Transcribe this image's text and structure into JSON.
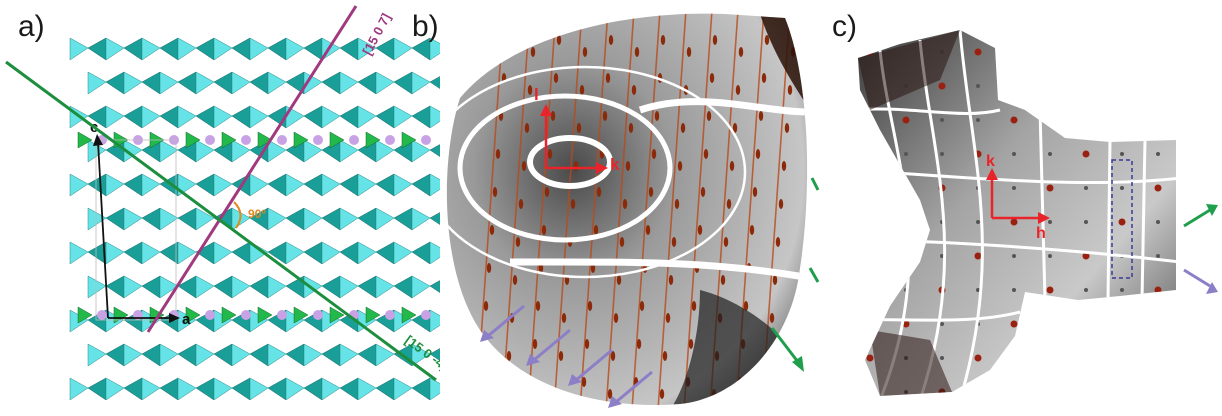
{
  "figure": {
    "panels": [
      {
        "label": "a)",
        "annotations": {
          "axis_c": "c",
          "axis_a": "a",
          "direction_1": "[15 0 7]",
          "direction_2": "[15 0 -4]",
          "angle": "90°"
        }
      },
      {
        "label": "b)",
        "annotations": {
          "axis_l": "l",
          "axis_k": "k"
        }
      },
      {
        "label": "c)",
        "annotations": {
          "axis_k": "k",
          "axis_h": "h"
        }
      }
    ],
    "colors": {
      "tetra_teal": "#1a9e98",
      "tetra_cyan": "#66e3e6",
      "green_tri": "#22b84a",
      "lilac_circle": "#c9a2e6",
      "purple_line": "#a0397f",
      "green_line": "#1c8e3e",
      "axis_red": "#e8242a",
      "arrow_purple": "#8c7fc7",
      "arrow_green": "#1f9e4c",
      "angle_orange": "#e08a1f"
    }
  }
}
